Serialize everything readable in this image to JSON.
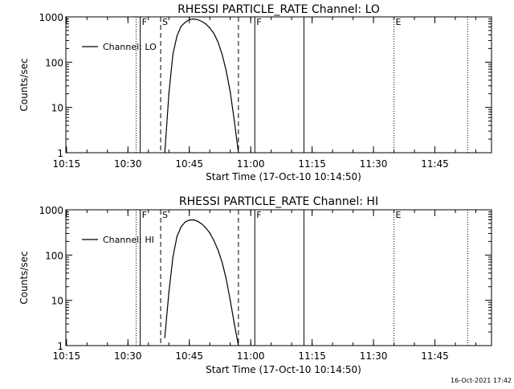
{
  "colors": {
    "background": "#ffffff",
    "ink": "#000000"
  },
  "footer": {
    "timestamp": "16-Oct-2021 17:42"
  },
  "chart_data": [
    {
      "type": "line",
      "title": "RHESSI  PARTICLE_RATE  Channel: LO",
      "xlabel": "Start Time (17-Oct-10 10:14:50)",
      "ylabel": "Counts/sec",
      "yscale": "log",
      "ylim": [
        1,
        1000
      ],
      "xlim": [
        "10:14:50",
        "11:58:50"
      ],
      "x_ticks": [
        "10:15",
        "10:30",
        "10:45",
        "11:00",
        "11:15",
        "11:30",
        "11:45"
      ],
      "y_ticks": [
        "1",
        "10",
        "100",
        "1000"
      ],
      "legend": {
        "label": "Channel: LO",
        "placement": "top-left"
      },
      "series": [
        {
          "name": "Channel: LO",
          "x": [
            "10:39",
            "10:40",
            "10:41",
            "10:42",
            "10:43",
            "10:44",
            "10:45",
            "10:46",
            "10:47",
            "10:48",
            "10:49",
            "10:50",
            "10:51",
            "10:52",
            "10:53",
            "10:54",
            "10:55",
            "10:56",
            "10:57"
          ],
          "y": [
            1,
            20,
            150,
            380,
            620,
            760,
            870,
            900,
            870,
            800,
            700,
            570,
            430,
            280,
            150,
            65,
            22,
            5,
            1
          ]
        }
      ],
      "markers": [
        {
          "time": "10:32",
          "style": "dotted",
          "label": ""
        },
        {
          "time": "10:33",
          "style": "solid",
          "label": "F"
        },
        {
          "time": "10:38",
          "style": "dashed",
          "label": "S"
        },
        {
          "time": "10:57",
          "style": "dashed",
          "label": ""
        },
        {
          "time": "11:01",
          "style": "solid",
          "label": "F"
        },
        {
          "time": "11:13",
          "style": "solid",
          "label": ""
        },
        {
          "time": "11:35",
          "style": "dotted",
          "label": "E"
        },
        {
          "time": "11:53",
          "style": "dotted",
          "label": ""
        }
      ]
    },
    {
      "type": "line",
      "title": "RHESSI  PARTICLE_RATE  Channel: HI",
      "xlabel": "Start Time (17-Oct-10 10:14:50)",
      "ylabel": "Counts/sec",
      "yscale": "log",
      "ylim": [
        1,
        1000
      ],
      "xlim": [
        "10:14:50",
        "11:58:50"
      ],
      "x_ticks": [
        "10:15",
        "10:30",
        "10:45",
        "11:00",
        "11:15",
        "11:30",
        "11:45"
      ],
      "y_ticks": [
        "1",
        "10",
        "100",
        "1000"
      ],
      "legend": {
        "label": "Channel: HI",
        "placement": "top-left"
      },
      "series": [
        {
          "name": "Channel: HI",
          "x": [
            "10:39",
            "10:40",
            "10:41",
            "10:42",
            "10:43",
            "10:44",
            "10:45",
            "10:46",
            "10:47",
            "10:48",
            "10:49",
            "10:50",
            "10:51",
            "10:52",
            "10:53",
            "10:54",
            "10:55",
            "10:56",
            "10:57"
          ],
          "y": [
            1.5,
            15,
            90,
            260,
            420,
            540,
            590,
            600,
            560,
            490,
            400,
            310,
            210,
            130,
            70,
            30,
            10,
            3,
            1
          ]
        }
      ],
      "markers": [
        {
          "time": "10:32",
          "style": "dotted",
          "label": ""
        },
        {
          "time": "10:33",
          "style": "solid",
          "label": "F"
        },
        {
          "time": "10:38",
          "style": "dashed",
          "label": "S"
        },
        {
          "time": "10:57",
          "style": "dashed",
          "label": ""
        },
        {
          "time": "11:01",
          "style": "solid",
          "label": "F"
        },
        {
          "time": "11:13",
          "style": "solid",
          "label": ""
        },
        {
          "time": "11:35",
          "style": "dotted",
          "label": "E"
        },
        {
          "time": "11:53",
          "style": "dotted",
          "label": ""
        }
      ]
    }
  ]
}
